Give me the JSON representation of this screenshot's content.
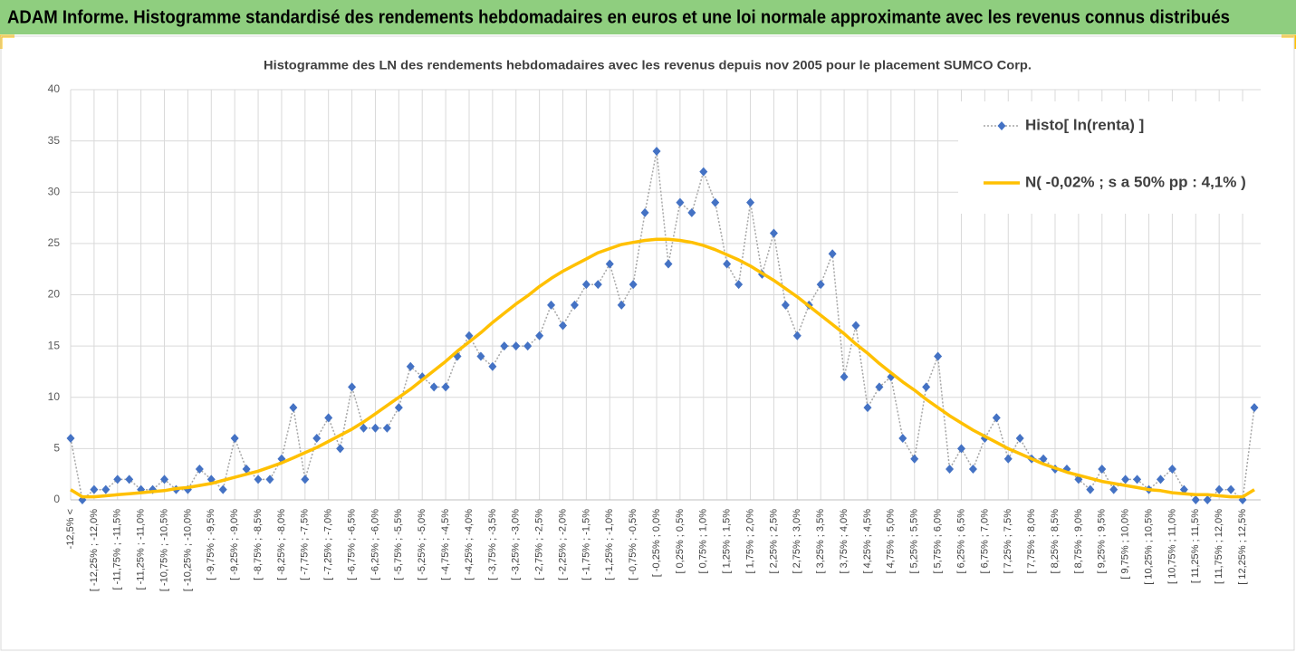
{
  "chart_data": {
    "type": "line",
    "title": "ADAM Informe. Histogramme standardisé des rendements hebdomadaires en euros et une loi normale approximante avec les revenus connus distribués",
    "subtitle": "Histogramme des LN des rendements hebdomadaires avec les revenus depuis nov 2005 pour le placement SUMCO Corp.",
    "categories": [
      "-12,5% <",
      null,
      "[ -12,25% ; -12,0%",
      null,
      "[ -11,75% ; -11,5%",
      null,
      "[ -11,25% ; -11,0%",
      null,
      "[ -10,75% ; -10,5%",
      null,
      "[ -10,25% ; -10,0%",
      null,
      "[ -9,75% ; -9,5%",
      null,
      "[ -9,25% ; -9,0%",
      null,
      "[ -8,75% ; -8,5%",
      null,
      "[ -8,25% ; -8,0%",
      null,
      "[ -7,75% ; -7,5%",
      null,
      "[ -7,25% ; -7,0%",
      null,
      "[ -6,75% ; -6,5%",
      null,
      "[ -6,25% ; -6,0%",
      null,
      "[ -5,75% ; -5,5%",
      null,
      "[ -5,25% ; -5,0%",
      null,
      "[ -4,75% ; -4,5%",
      null,
      "[ -4,25% ; -4,0%",
      null,
      "[ -3,75% ; -3,5%",
      null,
      "[ -3,25% ; -3,0%",
      null,
      "[ -2,75% ; -2,5%",
      null,
      "[ -2,25% ; -2,0%",
      null,
      "[ -1,75% ; -1,5%",
      null,
      "[ -1,25% ; -1,0%",
      null,
      "[ -0,75% ; -0,5%",
      null,
      "[ -0,25% ; 0,0%",
      null,
      "[ 0,25% ; 0,5%",
      null,
      "[ 0,75% ; 1,0%",
      null,
      "[ 1,25% ; 1,5%",
      null,
      "[ 1,75% ; 2,0%",
      null,
      "[ 2,25% ; 2,5%",
      null,
      "[ 2,75% ; 3,0%",
      null,
      "[ 3,25% ; 3,5%",
      null,
      "[ 3,75% ; 4,0%",
      null,
      "[ 4,25% ; 4,5%",
      null,
      "[ 4,75% ; 5,0%",
      null,
      "[ 5,25% ; 5,5%",
      null,
      "[ 5,75% ; 6,0%",
      null,
      "[ 6,25% ; 6,5%",
      null,
      "[ 6,75% ; 7,0%",
      null,
      "[ 7,25% ; 7,5%",
      null,
      "[ 7,75% ; 8,0%",
      null,
      "[ 8,25% ; 8,5%",
      null,
      "[ 8,75% ; 9,0%",
      null,
      "[ 9,25% ; 9,5%",
      null,
      "[ 9,75% ; 10,0%",
      null,
      "[ 10,25% ; 10,5%",
      null,
      "[ 10,75% ; 11,0%",
      null,
      "[ 11,25% ; 11,5%",
      null,
      "[ 11,75% ; 12,0%",
      null,
      "[ 12,25% ; 12,5%",
      null
    ],
    "series": [
      {
        "name": "Histo[ ln(renta) ]",
        "color": "#4472c4",
        "line_color": "#a6a6a6",
        "style": "dotted-markers",
        "values": [
          6,
          0,
          1,
          1,
          2,
          2,
          1,
          1,
          2,
          1,
          1,
          3,
          2,
          1,
          6,
          3,
          2,
          2,
          4,
          9,
          2,
          6,
          8,
          5,
          11,
          7,
          7,
          7,
          9,
          13,
          12,
          11,
          11,
          14,
          16,
          14,
          13,
          15,
          15,
          15,
          16,
          19,
          17,
          19,
          21,
          21,
          23,
          19,
          21,
          28,
          34,
          23,
          29,
          28,
          32,
          29,
          23,
          21,
          29,
          22,
          26,
          19,
          16,
          19,
          21,
          24,
          12,
          17,
          9,
          11,
          12,
          6,
          4,
          11,
          14,
          3,
          5,
          3,
          6,
          8,
          4,
          6,
          4,
          4,
          3,
          3,
          2,
          1,
          3,
          1,
          2,
          2,
          1,
          2,
          3,
          1,
          0,
          0,
          1,
          1,
          0,
          9
        ]
      },
      {
        "name": "N( -0,02% ; s a 50% pp : 4,1% )",
        "color": "#ffc000",
        "style": "smooth",
        "values": [
          1.0,
          0.3,
          0.3,
          0.4,
          0.5,
          0.6,
          0.7,
          0.8,
          0.9,
          1.1,
          1.2,
          1.4,
          1.6,
          1.9,
          2.2,
          2.5,
          2.8,
          3.2,
          3.6,
          4.1,
          4.6,
          5.1,
          5.7,
          6.3,
          6.9,
          7.6,
          8.4,
          9.2,
          10.0,
          10.8,
          11.7,
          12.6,
          13.5,
          14.5,
          15.4,
          16.3,
          17.3,
          18.2,
          19.1,
          19.9,
          20.8,
          21.6,
          22.3,
          22.9,
          23.5,
          24.1,
          24.5,
          24.9,
          25.1,
          25.3,
          25.4,
          25.4,
          25.3,
          25.1,
          24.8,
          24.4,
          23.9,
          23.4,
          22.8,
          22.1,
          21.4,
          20.6,
          19.8,
          18.9,
          18.0,
          17.1,
          16.2,
          15.2,
          14.3,
          13.3,
          12.4,
          11.5,
          10.7,
          9.8,
          9.0,
          8.2,
          7.5,
          6.8,
          6.2,
          5.6,
          5.0,
          4.5,
          4.0,
          3.5,
          3.1,
          2.7,
          2.4,
          2.1,
          1.8,
          1.6,
          1.4,
          1.2,
          1.0,
          0.9,
          0.7,
          0.6,
          0.5,
          0.5,
          0.4,
          0.3,
          0.3,
          1.0
        ]
      }
    ],
    "ylim": [
      0,
      40
    ],
    "yticks": [
      0,
      5,
      10,
      15,
      20,
      25,
      30,
      35,
      40
    ],
    "grid": true,
    "legend": "top-right",
    "title_background": "#8fce7f"
  }
}
